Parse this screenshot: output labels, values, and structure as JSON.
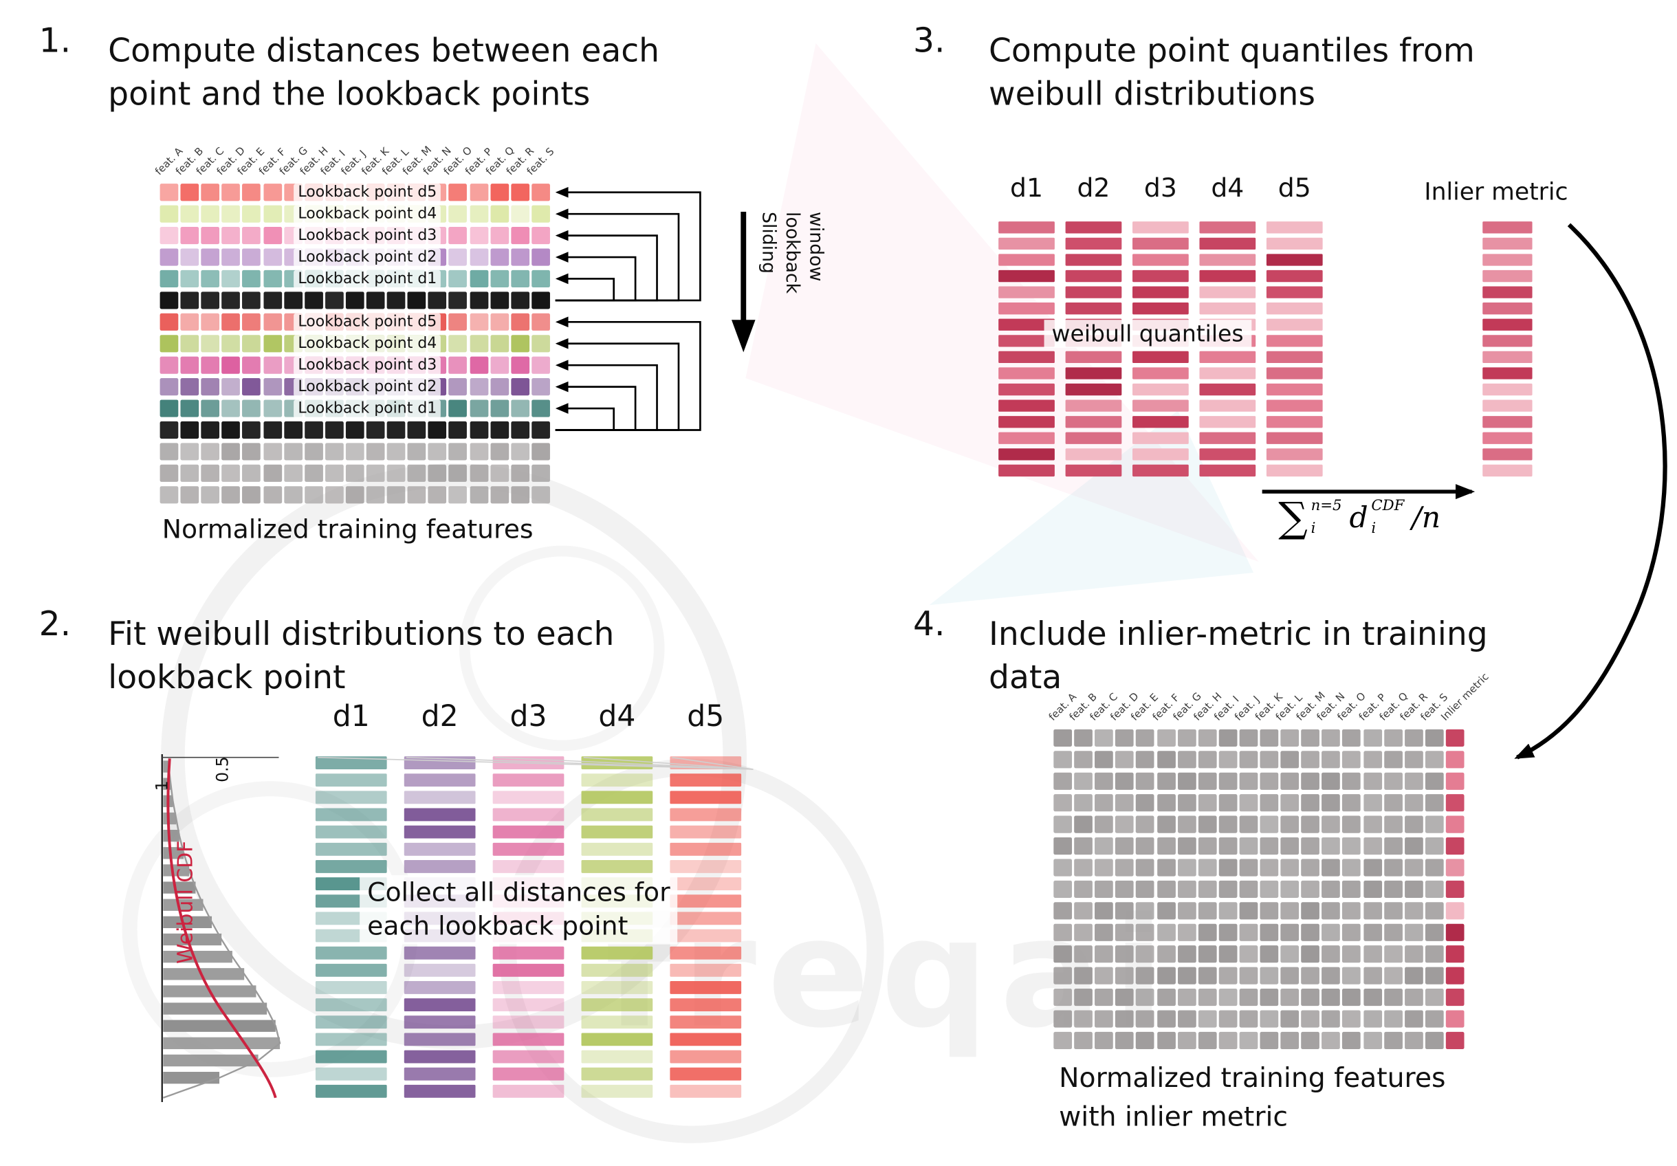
{
  "features": [
    "feat. A",
    "feat. B",
    "feat. C",
    "feat. D",
    "feat. E",
    "feat. F",
    "feat. G",
    "feat. H",
    "feat. I",
    "feat. J",
    "feat. K",
    "feat. L",
    "feat. M",
    "feat. N",
    "feat. O",
    "feat. P",
    "feat. Q",
    "feat. R",
    "feat. S"
  ],
  "p1": {
    "number": "1.",
    "title1": "Compute distances between each",
    "title2": "point and the lookback points",
    "caption": "Normalized training features",
    "sliding": [
      "Sliding",
      "lookback",
      "window"
    ],
    "rows": [
      {
        "label": "Lookback point d5",
        "color": "#f2635c"
      },
      {
        "label": "Lookback point d4",
        "color": "#dde9a8"
      },
      {
        "label": "Lookback point d3",
        "color": "#ef8cb4"
      },
      {
        "label": "Lookback point d2",
        "color": "#b184c3"
      },
      {
        "label": "Lookback point d1",
        "color": "#5fa29a"
      },
      {
        "label": "",
        "color": "#161616"
      },
      {
        "label": "Lookback point d5",
        "color": "#e85450"
      },
      {
        "label": "Lookback point d4",
        "color": "#a9c054"
      },
      {
        "label": "Lookback point d3",
        "color": "#dc5b9d"
      },
      {
        "label": "Lookback point d2",
        "color": "#7a5093"
      },
      {
        "label": "Lookback point d1",
        "color": "#3e7e77"
      },
      {
        "label": "",
        "color": "#161616"
      },
      {
        "label": "",
        "color": "#a7a4a4"
      },
      {
        "label": "",
        "color": "#a7a4a4"
      },
      {
        "label": "",
        "color": "#a7a4a4"
      }
    ]
  },
  "p2": {
    "number": "2.",
    "title1": "Fit weibull distributions to each",
    "title2": "lookback point",
    "one": "1",
    "half": "0.5",
    "cdf_label": "Weibull CDF",
    "hist": [
      5,
      7,
      9,
      12,
      15,
      19,
      24,
      30,
      37,
      45,
      54,
      64,
      75,
      86,
      96,
      104,
      108,
      88,
      52
    ],
    "columns": [
      {
        "name": "d1",
        "color": "#4f8f88"
      },
      {
        "name": "d2",
        "color": "#7c5596"
      },
      {
        "name": "d3",
        "color": "#df689e"
      },
      {
        "name": "d4",
        "color": "#b3c75f"
      },
      {
        "name": "d5",
        "color": "#ef5a51"
      }
    ],
    "overlay1": "Collect all distances for",
    "overlay2": "each lookback point"
  },
  "p3": {
    "number": "3.",
    "title1": "Compute point quantiles from",
    "title2": "weibull distributions",
    "headers": [
      "d1",
      "d2",
      "d3",
      "d4",
      "d5"
    ],
    "overlay": "weibull quantiles",
    "inlier_label": "Inlier metric",
    "palette": [
      "#b02b4a",
      "#c23a58",
      "#ce4f6b",
      "#da6d85",
      "#e792a4",
      "#f2b9c4",
      "#c74562",
      "#e47d93"
    ],
    "formula": {
      "sum": "∑",
      "sup": "n=5",
      "sub": "i",
      "var": "d",
      "vsup": "CDF",
      "vsub": "i",
      "tail": "/n"
    }
  },
  "p4": {
    "number": "4.",
    "title1": "Include inlier-metric in training",
    "title2": "data",
    "inlier_header": "Inlier metric",
    "gray": "#9c9999",
    "caption1": "Normalized training features",
    "caption2": "with inlier metric"
  },
  "watermark": {
    "text": "freqai"
  }
}
